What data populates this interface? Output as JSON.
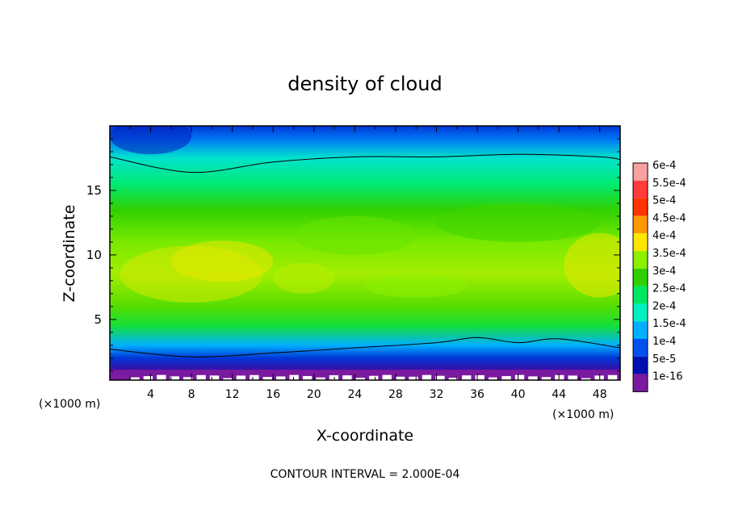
{
  "chart_data": {
    "type": "heatmap",
    "title": "density of cloud",
    "xlabel": "X-coordinate",
    "ylabel": "Z-coordinate",
    "x_unit": "(×1000 m)",
    "x_unit_right": "(×1000 m)",
    "footer": "CONTOUR INTERVAL = 2.000E-04",
    "xlim": [
      0,
      50
    ],
    "ylim": [
      0.3,
      20
    ],
    "x_ticks": [
      4,
      8,
      12,
      16,
      20,
      24,
      28,
      32,
      36,
      40,
      44,
      48
    ],
    "y_ticks": [
      5,
      10,
      15
    ],
    "colorbar": {
      "labels": [
        "6e-4",
        "5.5e-4",
        "5e-4",
        "4.5e-4",
        "4e-4",
        "3.5e-4",
        "3e-4",
        "2.5e-4",
        "2e-4",
        "1.5e-4",
        "1e-4",
        "5e-5",
        "1e-16"
      ],
      "values": [
        0.0006,
        0.00055,
        0.0005,
        0.00045,
        0.0004,
        0.00035,
        0.0003,
        0.00025,
        0.0002,
        0.00015,
        0.0001,
        5e-05,
        1e-16
      ],
      "colors": [
        "#f9a0a0",
        "#ff3c3c",
        "#ff3300",
        "#ff9900",
        "#ffe600",
        "#8cf000",
        "#30d000",
        "#00e860",
        "#00f0c0",
        "#00b0ff",
        "#0050f0",
        "#0010b0",
        "#7a1aa0"
      ]
    },
    "profile_by_height": [
      {
        "z": 0.5,
        "value": 1e-16
      },
      {
        "z": 1.2,
        "value": 3e-05
      },
      {
        "z": 2.0,
        "value": 8e-05
      },
      {
        "z": 3.0,
        "value": 0.00015
      },
      {
        "z": 4.5,
        "value": 0.00027
      },
      {
        "z": 6.0,
        "value": 0.00032
      },
      {
        "z": 8.5,
        "value": 0.00036
      },
      {
        "z": 11.0,
        "value": 0.00034
      },
      {
        "z": 13.5,
        "value": 0.0003
      },
      {
        "z": 15.5,
        "value": 0.00024
      },
      {
        "z": 17.5,
        "value": 0.00019
      },
      {
        "z": 19.0,
        "value": 0.00012
      },
      {
        "z": 20.0,
        "value": 8e-05
      }
    ],
    "contour_2e-4_upper": [
      [
        0,
        17.6
      ],
      [
        8,
        16.4
      ],
      [
        16,
        17.2
      ],
      [
        24,
        17.6
      ],
      [
        32,
        17.6
      ],
      [
        40,
        17.8
      ],
      [
        48,
        17.6
      ],
      [
        50,
        17.4
      ]
    ],
    "contour_2e-4_lower": [
      [
        0,
        2.7
      ],
      [
        8,
        2.1
      ],
      [
        16,
        2.4
      ],
      [
        24,
        2.8
      ],
      [
        32,
        3.2
      ],
      [
        36,
        3.6
      ],
      [
        40,
        3.2
      ],
      [
        44,
        3.5
      ],
      [
        50,
        2.8
      ]
    ]
  }
}
